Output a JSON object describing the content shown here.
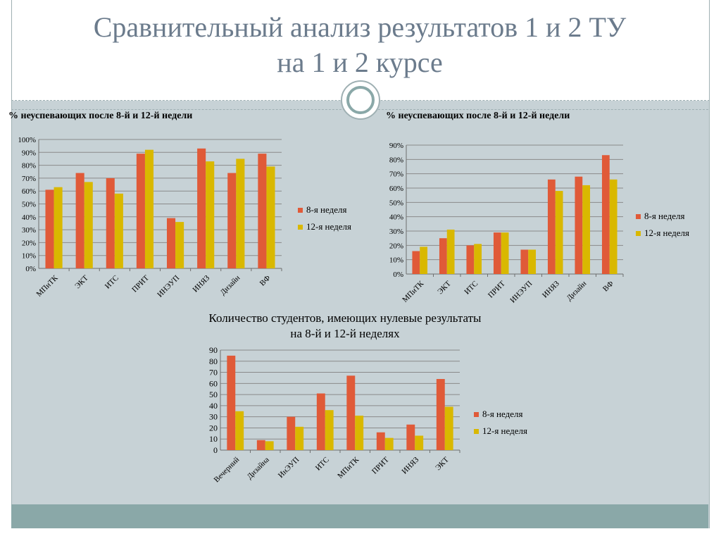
{
  "page": {
    "title_line1": "Сравнительный анализ результатов 1 и 2 ТУ",
    "title_line2": "на 1 и 2 курсе"
  },
  "colors": {
    "series1": "#e05a38",
    "series2": "#d9b800"
  },
  "chart_data": [
    {
      "type": "bar",
      "title": "% неуспевающих после 8-й и 12-й недели",
      "categories": [
        "МПиТК",
        "ЭКТ",
        "ИТС",
        "ПРИТ",
        "ИНЭУП",
        "ИНЯЗ",
        "Дизайн",
        "ВФ"
      ],
      "series": [
        {
          "name": "8-я неделя",
          "values": [
            61,
            74,
            70,
            89,
            39,
            93,
            74,
            89
          ]
        },
        {
          "name": "12-я неделя",
          "values": [
            63,
            67,
            58,
            92,
            36,
            83,
            85,
            79
          ]
        }
      ],
      "ylim": [
        0,
        100
      ],
      "yticks": [
        "0%",
        "10%",
        "20%",
        "30%",
        "40%",
        "50%",
        "60%",
        "70%",
        "80%",
        "90%",
        "100%"
      ],
      "legend": "right",
      "grid": true
    },
    {
      "type": "bar",
      "title": "% неуспевающих после 8-й и 12-й недели",
      "categories": [
        "МПиТК",
        "ЭКТ",
        "ИТС",
        "ПРИТ",
        "ИНЭУП",
        "ИНЯЗ",
        "Дизайн",
        "ВФ"
      ],
      "series": [
        {
          "name": "8-я неделя",
          "values": [
            16,
            25,
            20,
            29,
            17,
            66,
            68,
            83
          ]
        },
        {
          "name": "12-я неделя",
          "values": [
            19,
            31,
            21,
            29,
            17,
            58,
            62,
            66
          ]
        }
      ],
      "ylim": [
        0,
        90
      ],
      "yticks": [
        "0%",
        "10%",
        "20%",
        "30%",
        "40%",
        "50%",
        "60%",
        "70%",
        "80%",
        "90%"
      ],
      "legend": "right",
      "grid": true
    },
    {
      "type": "bar",
      "title": "Количество студентов, имеющих нулевые результаты  на 8-й и 12-й неделях",
      "categories": [
        "Вечерний",
        "Дизайна",
        "ИнЭУП",
        "ИТС",
        "МПиТК",
        "ПРИТ",
        "ИНЯЗ",
        "ЭКТ"
      ],
      "series": [
        {
          "name": "8-я неделя",
          "values": [
            85,
            9,
            30,
            51,
            67,
            16,
            23,
            64
          ]
        },
        {
          "name": "12-я неделя",
          "values": [
            35,
            8,
            21,
            36,
            31,
            11,
            13,
            39
          ]
        }
      ],
      "ylim": [
        0,
        90
      ],
      "yticks": [
        "0",
        "10",
        "20",
        "30",
        "40",
        "50",
        "60",
        "70",
        "80",
        "90"
      ],
      "legend": "right",
      "grid": true
    }
  ]
}
